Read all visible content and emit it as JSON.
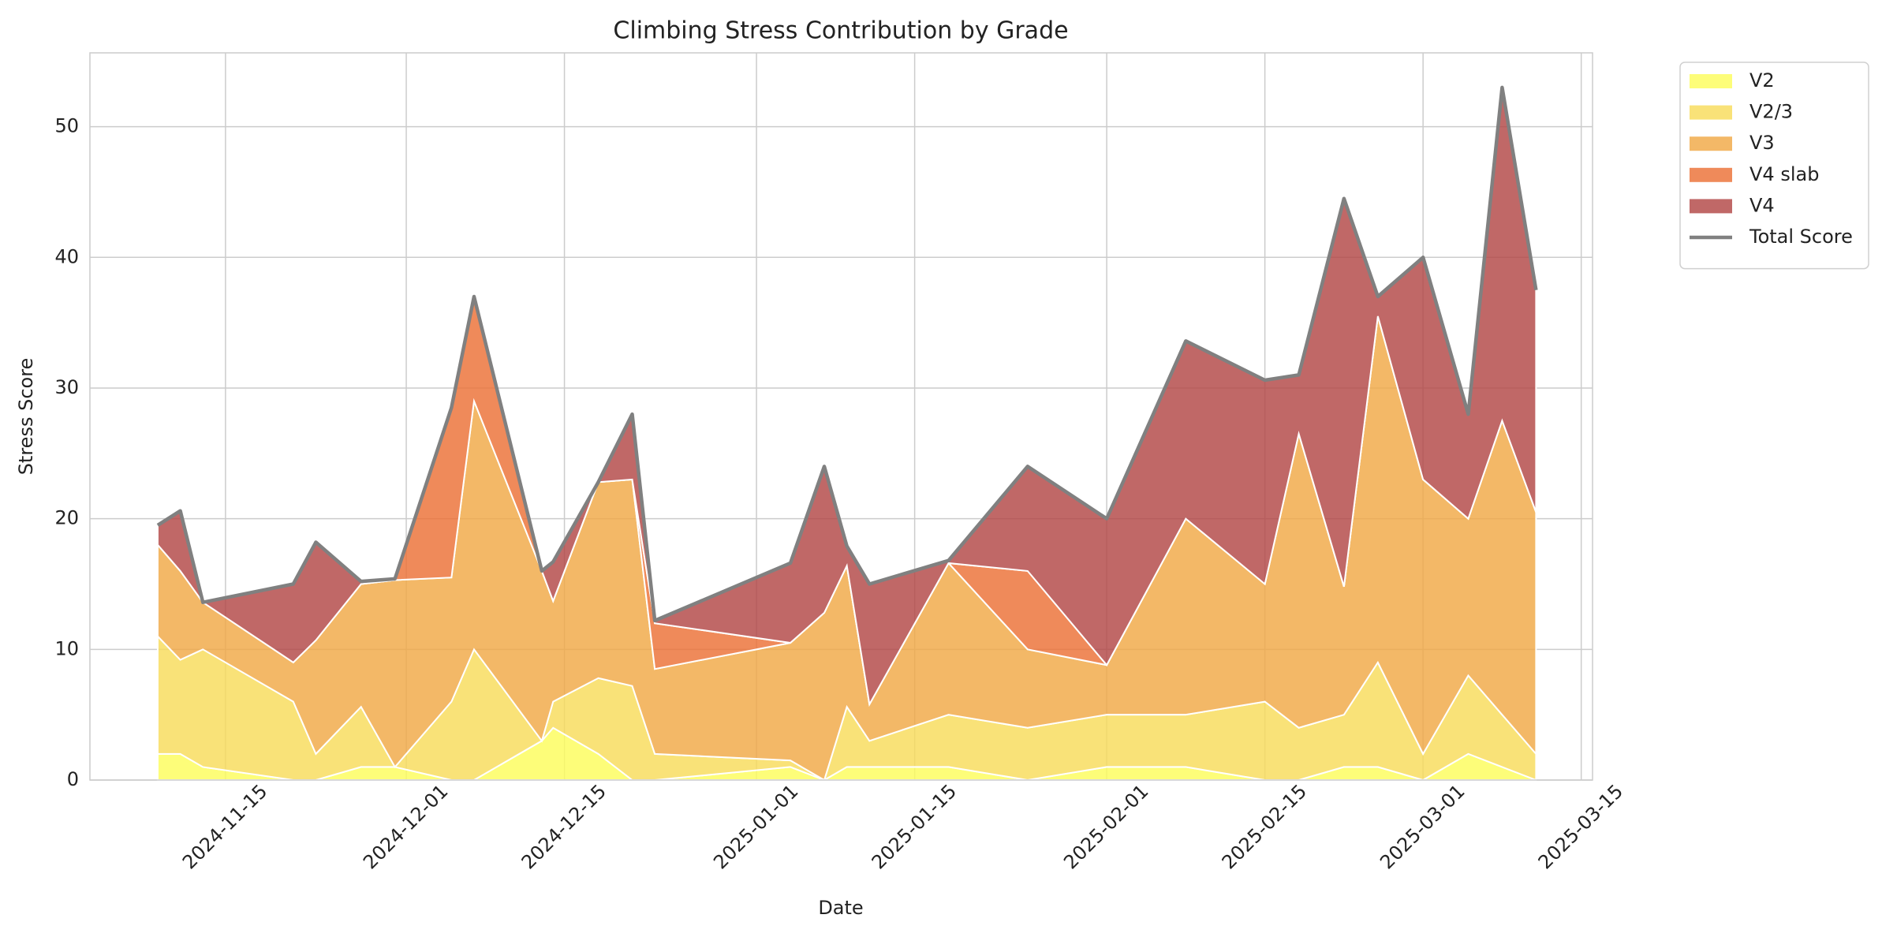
{
  "chart_data": {
    "type": "stacked_area",
    "title": "Climbing Stress Contribution by Grade",
    "xlabel": "Date",
    "ylabel": "Stress Score",
    "x": [
      "2024-11-09",
      "2024-11-11",
      "2024-11-13",
      "2024-11-21",
      "2024-11-23",
      "2024-11-27",
      "2024-11-30",
      "2024-12-05",
      "2024-12-07",
      "2024-12-13",
      "2024-12-14",
      "2024-12-18",
      "2024-12-21",
      "2024-12-23",
      "2025-01-04",
      "2025-01-07",
      "2025-01-09",
      "2025-01-11",
      "2025-01-18",
      "2025-01-25",
      "2025-02-01",
      "2025-02-08",
      "2025-02-15",
      "2025-02-18",
      "2025-02-22",
      "2025-02-25",
      "2025-03-01",
      "2025-03-05",
      "2025-03-08",
      "2025-03-11"
    ],
    "series": [
      {
        "name": "V2",
        "color": "#fdfd5c",
        "values": [
          2,
          2,
          1,
          0,
          0,
          1,
          1,
          0,
          0,
          3,
          4,
          2,
          0,
          0,
          1,
          0,
          1,
          1,
          1,
          0,
          1,
          1,
          0,
          0,
          1,
          1,
          0,
          2,
          1,
          0
        ]
      },
      {
        "name": "V2/3",
        "color": "#f8dc5a",
        "values": [
          9,
          7.2,
          9,
          6,
          2,
          4.6,
          0,
          6,
          10,
          0,
          2,
          5.8,
          7.2,
          2,
          0.5,
          0,
          4.6,
          2,
          4,
          4,
          4,
          4,
          6,
          4,
          4,
          8,
          2,
          6,
          4,
          2
        ]
      },
      {
        "name": "V3",
        "color": "#f0a846",
        "values": [
          7,
          6.8,
          3.6,
          3,
          8.7,
          9.4,
          14.3,
          9.5,
          19,
          13,
          7.7,
          15,
          15.8,
          6.5,
          9,
          12.8,
          10.8,
          2.8,
          11.6,
          6,
          3.8,
          15,
          9,
          22.5,
          9.8,
          26.5,
          21,
          12,
          22.5,
          18.5
        ]
      },
      {
        "name": "V4 slab",
        "color": "#ec7036",
        "values": [
          0,
          0,
          0,
          0,
          0,
          0,
          0,
          13,
          8,
          0,
          0,
          0,
          0,
          3.5,
          0,
          0,
          0,
          0,
          0,
          6,
          0,
          0,
          0,
          0,
          0,
          0,
          0,
          0,
          0,
          0
        ]
      },
      {
        "name": "V4",
        "color": "#b24745",
        "values": [
          1.5,
          4.6,
          0,
          6,
          7.5,
          0.2,
          0.1,
          0,
          0,
          0,
          3,
          0,
          5,
          0.2,
          6.1,
          11.2,
          1.5,
          9.2,
          0.2,
          8,
          11.2,
          13.6,
          15.6,
          4.5,
          29.7,
          1.5,
          17,
          8,
          25.5,
          17
        ]
      }
    ],
    "total": {
      "name": "Total Score",
      "color": "#808080",
      "values": [
        19.5,
        20.6,
        13.6,
        15,
        18.2,
        15.2,
        15.4,
        28.5,
        37,
        16,
        16.7,
        22.8,
        28,
        12.2,
        16.6,
        24,
        17.9,
        15,
        16.8,
        24,
        20,
        33.6,
        30.6,
        31,
        44.5,
        37,
        40,
        28,
        53,
        37.5
      ]
    },
    "xlim": [
      "2024-11-03",
      "2025-03-16"
    ],
    "xticks": [
      "2024-11-15",
      "2024-12-01",
      "2024-12-15",
      "2025-01-01",
      "2025-01-15",
      "2025-02-01",
      "2025-02-15",
      "2025-03-01",
      "2025-03-15"
    ],
    "ylim": [
      0,
      55.65
    ],
    "yticks": [
      0,
      10,
      20,
      30,
      40,
      50
    ],
    "grid": true,
    "legend": "outside upper right"
  }
}
